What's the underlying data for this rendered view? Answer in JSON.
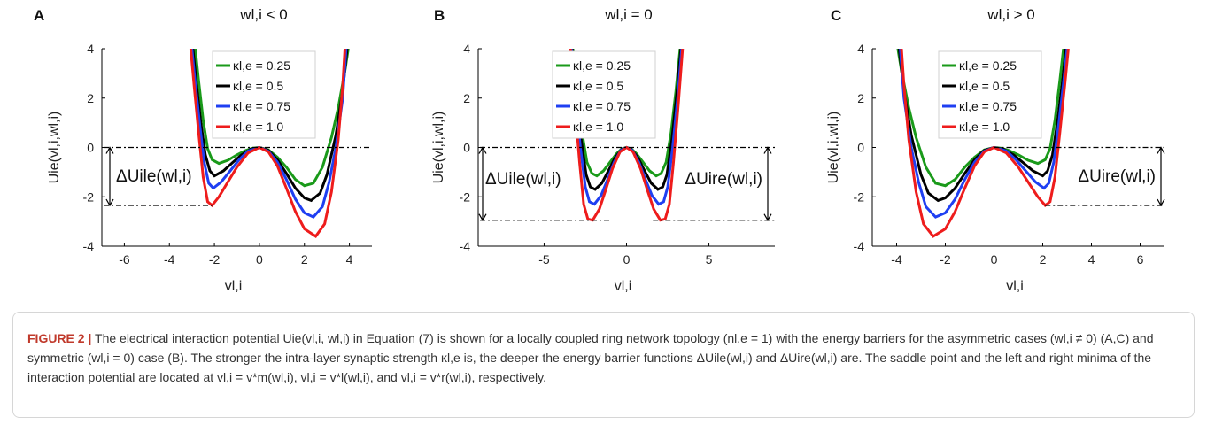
{
  "colors": {
    "green": "#1a9a1a",
    "black": "#000000",
    "blue": "#1f3ff2",
    "red": "#ee1c1c",
    "caption_label": "#c0392b"
  },
  "legend": [
    "κl,e = 0.25",
    "κl,e = 0.5",
    "κl,e = 0.75",
    "κl,e = 1.0"
  ],
  "caption": {
    "label": "FIGURE 2 |",
    "text": "The electrical interaction potential Uie(vl,i, wl,i) in Equation (7) is shown for a locally coupled ring network topology (nl,e = 1) with the energy barriers for the asymmetric cases (wl,i ≠ 0) (A,C) and symmetric (wl,i = 0) case (B). The stronger the intra-layer synaptic strength κl,e is, the deeper the energy barrier functions ΔUile(wl,i) and ΔUire(wl,i) are. The saddle point and the left and right minima of the interaction potential are located at vl,i = v*m(wl,i), vl,i = v*l(wl,i), and vl,i = v*r(wl,i), respectively."
  },
  "chart_data": [
    {
      "type": "line",
      "panel": "A",
      "title": "wl,i < 0",
      "xlabel": "vl,i",
      "ylabel": "Uie(vl,i,wl,i)",
      "xlim": [
        -7,
        5
      ],
      "ylim": [
        -4,
        4
      ],
      "xticks": [
        -6,
        -4,
        -2,
        0,
        2,
        4
      ],
      "yticks": [
        -4,
        -2,
        0,
        2,
        4
      ],
      "barrier_label": "ΔUile(wl,i)",
      "series": [
        {
          "name": "κl,e = 0.25",
          "color": "#1a9a1a",
          "x": [
            -2.85,
            -2.7,
            -2.5,
            -2.3,
            -2.1,
            -1.8,
            -1.4,
            -1.0,
            -0.6,
            -0.3,
            0,
            0.4,
            0.8,
            1.2,
            1.6,
            2.0,
            2.4,
            2.8,
            3.2,
            3.5,
            3.8,
            3.95
          ],
          "y": [
            4.0,
            2.7,
            1.1,
            -0.05,
            -0.5,
            -0.65,
            -0.52,
            -0.3,
            -0.12,
            -0.03,
            0,
            -0.1,
            -0.4,
            -0.8,
            -1.3,
            -1.55,
            -1.45,
            -0.8,
            0.4,
            1.6,
            3.1,
            4.0
          ]
        },
        {
          "name": "κl,e = 0.5",
          "color": "#000000",
          "x": [
            -2.95,
            -2.8,
            -2.6,
            -2.4,
            -2.2,
            -2.0,
            -1.6,
            -1.2,
            -0.8,
            -0.4,
            0,
            0.4,
            0.8,
            1.2,
            1.6,
            2.0,
            2.3,
            2.7,
            3.0,
            3.4,
            3.7,
            3.9
          ],
          "y": [
            4.0,
            2.6,
            1.0,
            -0.3,
            -0.95,
            -1.15,
            -0.95,
            -0.62,
            -0.3,
            -0.07,
            0,
            -0.12,
            -0.5,
            -1.05,
            -1.65,
            -2.05,
            -2.15,
            -1.85,
            -1.1,
            0.5,
            2.3,
            4.0
          ]
        },
        {
          "name": "κl,e = 0.75",
          "color": "#1f3ff2",
          "x": [
            -3.0,
            -2.85,
            -2.65,
            -2.45,
            -2.25,
            -2.05,
            -1.7,
            -1.3,
            -0.9,
            -0.5,
            0,
            0.4,
            0.8,
            1.2,
            1.6,
            2.0,
            2.4,
            2.8,
            3.1,
            3.4,
            3.7,
            3.85
          ],
          "y": [
            4.0,
            2.6,
            0.9,
            -0.6,
            -1.45,
            -1.65,
            -1.4,
            -0.95,
            -0.5,
            -0.14,
            0,
            -0.15,
            -0.6,
            -1.3,
            -2.1,
            -2.65,
            -2.82,
            -2.4,
            -1.4,
            0.0,
            2.0,
            4.0
          ]
        },
        {
          "name": "κl,e = 1.0",
          "color": "#ee1c1c",
          "x": [
            -3.05,
            -2.9,
            -2.7,
            -2.5,
            -2.3,
            -2.1,
            -1.8,
            -1.4,
            -1.0,
            -0.5,
            0,
            0.4,
            0.8,
            1.2,
            1.6,
            2.0,
            2.5,
            2.9,
            3.2,
            3.5,
            3.7,
            3.8
          ],
          "y": [
            4.0,
            2.5,
            0.6,
            -1.2,
            -2.2,
            -2.35,
            -2.0,
            -1.4,
            -0.8,
            -0.22,
            0,
            -0.18,
            -0.75,
            -1.65,
            -2.6,
            -3.3,
            -3.6,
            -3.1,
            -1.8,
            0.3,
            2.5,
            4.0
          ]
        }
      ]
    },
    {
      "type": "line",
      "panel": "B",
      "title": "wl,i = 0",
      "xlabel": "vl,i",
      "ylabel": "Uie(vl,i,wl,i)",
      "xlim": [
        -9,
        9
      ],
      "ylim": [
        -4,
        4
      ],
      "xticks": [
        -5,
        0,
        5
      ],
      "yticks": [
        -4,
        -2,
        0,
        2,
        4
      ],
      "barrier_label": "ΔUile(wl,i)",
      "barrier_label_right": "ΔUire(wl,i)",
      "series": [
        {
          "name": "κl,e = 0.25",
          "color": "#1a9a1a",
          "x": [
            -3.25,
            -3.0,
            -2.7,
            -2.4,
            -2.1,
            -1.8,
            -1.4,
            -1.0,
            -0.6,
            -0.3,
            0,
            0.3,
            0.6,
            1.0,
            1.4,
            1.8,
            2.1,
            2.4,
            2.7,
            3.0,
            3.25
          ],
          "y": [
            4.0,
            2.3,
            0.6,
            -0.6,
            -1.05,
            -1.15,
            -0.95,
            -0.6,
            -0.25,
            -0.06,
            0,
            -0.06,
            -0.25,
            -0.6,
            -0.95,
            -1.15,
            -1.05,
            -0.6,
            0.6,
            2.3,
            4.0
          ]
        },
        {
          "name": "κl,e = 0.5",
          "color": "#000000",
          "x": [
            -3.3,
            -3.05,
            -2.75,
            -2.45,
            -2.2,
            -1.9,
            -1.5,
            -1.1,
            -0.7,
            -0.3,
            0,
            0.3,
            0.7,
            1.1,
            1.5,
            1.9,
            2.2,
            2.45,
            2.75,
            3.05,
            3.3
          ],
          "y": [
            4.0,
            2.2,
            0.3,
            -1.1,
            -1.6,
            -1.7,
            -1.45,
            -0.95,
            -0.42,
            -0.08,
            0,
            -0.08,
            -0.42,
            -0.95,
            -1.45,
            -1.7,
            -1.6,
            -1.1,
            0.3,
            2.2,
            4.0
          ]
        },
        {
          "name": "κl,e = 0.75",
          "color": "#1f3ff2",
          "x": [
            -3.35,
            -3.1,
            -2.8,
            -2.5,
            -2.25,
            -1.95,
            -1.55,
            -1.15,
            -0.75,
            -0.35,
            0,
            0.35,
            0.75,
            1.15,
            1.55,
            1.95,
            2.25,
            2.5,
            2.8,
            3.1,
            3.35
          ],
          "y": [
            4.0,
            2.0,
            0.0,
            -1.6,
            -2.2,
            -2.3,
            -1.95,
            -1.3,
            -0.6,
            -0.12,
            0,
            -0.12,
            -0.6,
            -1.3,
            -1.95,
            -2.3,
            -2.2,
            -1.6,
            0.0,
            2.0,
            4.0
          ]
        },
        {
          "name": "κl,e = 1.0",
          "color": "#ee1c1c",
          "x": [
            -3.4,
            -3.15,
            -2.85,
            -2.6,
            -2.35,
            -2.05,
            -1.65,
            -1.25,
            -0.85,
            -0.4,
            0,
            0.4,
            0.85,
            1.25,
            1.65,
            2.05,
            2.35,
            2.6,
            2.85,
            3.15,
            3.4
          ],
          "y": [
            4.0,
            1.8,
            -0.6,
            -2.3,
            -2.9,
            -2.95,
            -2.5,
            -1.7,
            -0.85,
            -0.18,
            0,
            -0.18,
            -0.85,
            -1.7,
            -2.5,
            -2.95,
            -2.9,
            -2.3,
            -0.6,
            1.8,
            4.0
          ]
        }
      ]
    },
    {
      "type": "line",
      "panel": "C",
      "title": "wl,i > 0",
      "xlabel": "vl,i",
      "ylabel": "Uie(vl,i,wl,i)",
      "xlim": [
        -5,
        7
      ],
      "ylim": [
        -4,
        4
      ],
      "xticks": [
        -4,
        -2,
        0,
        2,
        4,
        6
      ],
      "yticks": [
        -4,
        -2,
        0,
        2,
        4
      ],
      "barrier_label": "ΔUire(wl,i)",
      "series": [
        {
          "name": "κl,e = 0.25",
          "color": "#1a9a1a",
          "x": [
            -3.95,
            -3.8,
            -3.5,
            -3.2,
            -2.8,
            -2.4,
            -2.0,
            -1.6,
            -1.2,
            -0.8,
            -0.4,
            0,
            0.3,
            0.6,
            1.0,
            1.4,
            1.8,
            2.1,
            2.3,
            2.5,
            2.7,
            2.85
          ],
          "y": [
            4.0,
            3.1,
            1.6,
            0.4,
            -0.8,
            -1.45,
            -1.55,
            -1.3,
            -0.8,
            -0.4,
            -0.1,
            0,
            -0.03,
            -0.12,
            -0.3,
            -0.52,
            -0.65,
            -0.5,
            -0.05,
            1.1,
            2.7,
            4.0
          ]
        },
        {
          "name": "κl,e = 0.5",
          "color": "#000000",
          "x": [
            -3.9,
            -3.7,
            -3.4,
            -3.0,
            -2.7,
            -2.3,
            -2.0,
            -1.6,
            -1.2,
            -0.8,
            -0.4,
            0,
            0.4,
            0.8,
            1.2,
            1.6,
            2.0,
            2.2,
            2.4,
            2.6,
            2.8,
            2.95
          ],
          "y": [
            4.0,
            2.3,
            0.5,
            -1.1,
            -1.85,
            -2.15,
            -2.05,
            -1.65,
            -1.05,
            -0.5,
            -0.12,
            0,
            -0.07,
            -0.3,
            -0.62,
            -0.95,
            -1.15,
            -0.95,
            -0.3,
            1.0,
            2.6,
            4.0
          ]
        },
        {
          "name": "κl,e = 0.75",
          "color": "#1f3ff2",
          "x": [
            -3.85,
            -3.7,
            -3.4,
            -3.1,
            -2.8,
            -2.4,
            -2.0,
            -1.6,
            -1.2,
            -0.8,
            -0.4,
            0,
            0.5,
            0.9,
            1.3,
            1.7,
            2.05,
            2.25,
            2.45,
            2.65,
            2.85,
            3.0
          ],
          "y": [
            4.0,
            2.0,
            0.0,
            -1.4,
            -2.4,
            -2.82,
            -2.65,
            -2.1,
            -1.3,
            -0.6,
            -0.15,
            0,
            -0.14,
            -0.5,
            -0.95,
            -1.4,
            -1.65,
            -1.45,
            -0.6,
            0.9,
            2.6,
            4.0
          ]
        },
        {
          "name": "κl,e = 1.0",
          "color": "#ee1c1c",
          "x": [
            -3.8,
            -3.7,
            -3.5,
            -3.2,
            -2.9,
            -2.5,
            -2.0,
            -1.6,
            -1.2,
            -0.8,
            -0.4,
            0,
            0.5,
            1.0,
            1.4,
            1.8,
            2.1,
            2.3,
            2.5,
            2.7,
            2.9,
            3.05
          ],
          "y": [
            4.0,
            2.5,
            0.3,
            -1.8,
            -3.1,
            -3.6,
            -3.3,
            -2.6,
            -1.65,
            -0.75,
            -0.18,
            0,
            -0.22,
            -0.8,
            -1.4,
            -2.0,
            -2.35,
            -2.2,
            -1.2,
            0.6,
            2.5,
            4.0
          ]
        }
      ]
    }
  ]
}
